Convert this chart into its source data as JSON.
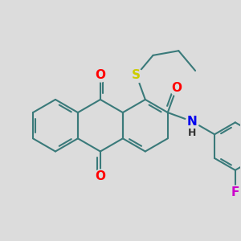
{
  "background_color": "#dcdcdc",
  "bond_color": "#3a7a7a",
  "bond_width": 1.5,
  "dbo": 0.055,
  "atom_colors": {
    "O": "#ff0000",
    "S": "#cccc00",
    "N": "#0000ee",
    "F": "#cc00cc",
    "H": "#333333"
  },
  "font_size": 10,
  "figsize": [
    3.0,
    3.0
  ],
  "dpi": 100
}
